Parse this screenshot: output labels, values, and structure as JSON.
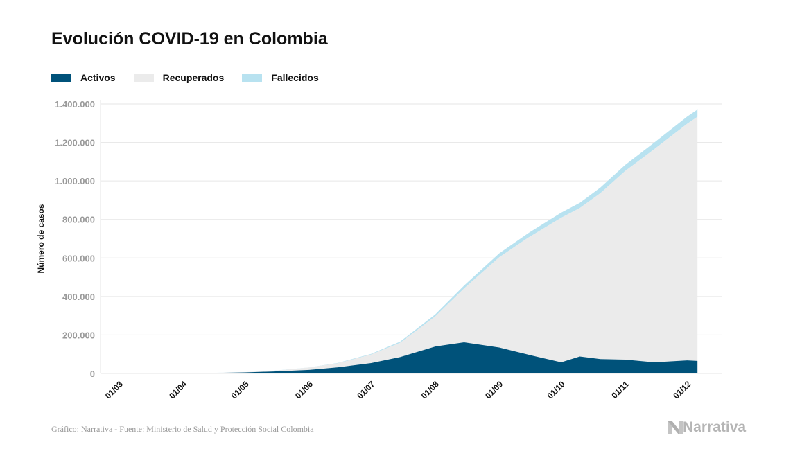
{
  "title": "Evolución COVID-19 en Colombia",
  "source": "Gráfico: Narrativa - Fuente: Ministerio de Salud y Protección Social Colombia",
  "logo_text": "Narrativa",
  "colors": {
    "activos": "#00527a",
    "recuperados": "#ebebeb",
    "fallecidos": "#b8e2f0",
    "grid": "#e6e6e6",
    "tick": "#999999"
  },
  "chart_data": {
    "type": "area",
    "stacked": true,
    "title": "Evolución COVID-19 en Colombia",
    "ylabel": "Número de casos",
    "xlabel": "",
    "ylim": [
      0,
      1400000
    ],
    "grid": true,
    "legend_position": "top-left",
    "yticks": [
      {
        "value": 0,
        "label": "0"
      },
      {
        "value": 200000,
        "label": "200.000"
      },
      {
        "value": 400000,
        "label": "400.000"
      },
      {
        "value": 600000,
        "label": "600.000"
      },
      {
        "value": 800000,
        "label": "800.000"
      },
      {
        "value": 1000000,
        "label": "1.000.000"
      },
      {
        "value": 1200000,
        "label": "1.200.000"
      },
      {
        "value": 1400000,
        "label": "1.400.000"
      }
    ],
    "xticks": [
      {
        "date": "2020-03-01",
        "label": "01/03"
      },
      {
        "date": "2020-04-01",
        "label": "01/04"
      },
      {
        "date": "2020-05-01",
        "label": "01/05"
      },
      {
        "date": "2020-06-01",
        "label": "01/06"
      },
      {
        "date": "2020-07-01",
        "label": "01/07"
      },
      {
        "date": "2020-08-01",
        "label": "01/08"
      },
      {
        "date": "2020-09-01",
        "label": "01/09"
      },
      {
        "date": "2020-10-01",
        "label": "01/10"
      },
      {
        "date": "2020-11-01",
        "label": "01/11"
      },
      {
        "date": "2020-12-01",
        "label": "01/12"
      }
    ],
    "x": [
      "2020-03-06",
      "2020-03-15",
      "2020-04-01",
      "2020-04-15",
      "2020-05-01",
      "2020-05-15",
      "2020-06-01",
      "2020-06-15",
      "2020-07-01",
      "2020-07-15",
      "2020-08-01",
      "2020-08-15",
      "2020-09-01",
      "2020-09-15",
      "2020-10-01",
      "2020-10-10",
      "2020-10-20",
      "2020-11-01",
      "2020-11-15",
      "2020-12-01",
      "2020-12-06"
    ],
    "series": [
      {
        "name": "Activos",
        "values": [
          1,
          45,
          1000,
          2400,
          5300,
          10600,
          18400,
          32000,
          54000,
          85000,
          140000,
          162000,
          135000,
          98000,
          58000,
          88000,
          75000,
          72000,
          58000,
          68000,
          65000
        ]
      },
      {
        "name": "Recuperados",
        "values": [
          0,
          0,
          48,
          574,
          1392,
          3070,
          12424,
          21130,
          44539,
          74355,
          155851,
          279879,
          469017,
          607302,
          751143,
          770999,
          861781,
          979806,
          1106807,
          1228972,
          1268295
        ]
      },
      {
        "name": "Fallecidos",
        "values": [
          0,
          0,
          17,
          131,
          314,
          546,
          1009,
          1801,
          3470,
          5814,
          10330,
          14810,
          20052,
          23288,
          26196,
          27180,
          29102,
          31515,
          33939,
          37117,
          37808
        ]
      }
    ]
  }
}
